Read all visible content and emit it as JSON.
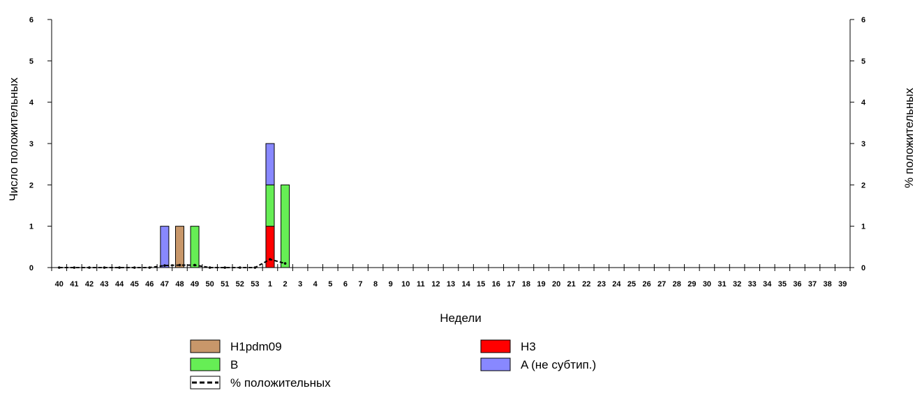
{
  "chart_data": {
    "type": "bar",
    "stacked": true,
    "xlabel": "Недели",
    "ylabel_left": "Число положительных",
    "ylabel_right": "% положительных",
    "categories": [
      "40",
      "41",
      "42",
      "43",
      "44",
      "45",
      "46",
      "47",
      "48",
      "49",
      "50",
      "51",
      "52",
      "53",
      "1",
      "2",
      "3",
      "4",
      "5",
      "6",
      "7",
      "8",
      "9",
      "10",
      "11",
      "12",
      "13",
      "14",
      "15",
      "16",
      "17",
      "18",
      "19",
      "20",
      "21",
      "22",
      "23",
      "24",
      "25",
      "26",
      "27",
      "28",
      "29",
      "30",
      "31",
      "32",
      "33",
      "34",
      "35",
      "36",
      "37",
      "38",
      "39"
    ],
    "ylim_left": [
      0,
      6
    ],
    "ylim_right": [
      0,
      6
    ],
    "yticks_left": [
      "0",
      "1",
      "2",
      "3",
      "4",
      "5",
      "6"
    ],
    "yticks_right": [
      "0",
      "1",
      "2",
      "3",
      "4",
      "5",
      "6"
    ],
    "grid": false,
    "legend_position": "bottom",
    "series": [
      {
        "name": "H1pdm09",
        "color": "#c8976a",
        "values": [
          0,
          0,
          0,
          0,
          0,
          0,
          0,
          0,
          1,
          0,
          0,
          0,
          0,
          0,
          0,
          0,
          0,
          0,
          0,
          0,
          0,
          0,
          0,
          0,
          0,
          0,
          0,
          0,
          0,
          0,
          0,
          0,
          0,
          0,
          0,
          0,
          0,
          0,
          0,
          0,
          0,
          0,
          0,
          0,
          0,
          0,
          0,
          0,
          0,
          0,
          0,
          0,
          0
        ]
      },
      {
        "name": "H3",
        "color": "#ff0000",
        "values": [
          0,
          0,
          0,
          0,
          0,
          0,
          0,
          0,
          0,
          0,
          0,
          0,
          0,
          0,
          1,
          0,
          0,
          0,
          0,
          0,
          0,
          0,
          0,
          0,
          0,
          0,
          0,
          0,
          0,
          0,
          0,
          0,
          0,
          0,
          0,
          0,
          0,
          0,
          0,
          0,
          0,
          0,
          0,
          0,
          0,
          0,
          0,
          0,
          0,
          0,
          0,
          0,
          0
        ]
      },
      {
        "name": "B",
        "color": "#66ee55",
        "values": [
          0,
          0,
          0,
          0,
          0,
          0,
          0,
          0,
          0,
          1,
          0,
          0,
          0,
          0,
          1,
          2,
          0,
          0,
          0,
          0,
          0,
          0,
          0,
          0,
          0,
          0,
          0,
          0,
          0,
          0,
          0,
          0,
          0,
          0,
          0,
          0,
          0,
          0,
          0,
          0,
          0,
          0,
          0,
          0,
          0,
          0,
          0,
          0,
          0,
          0,
          0,
          0,
          0
        ]
      },
      {
        "name": "A (не субтип.)",
        "color": "#8888ff",
        "values": [
          0,
          0,
          0,
          0,
          0,
          0,
          0,
          1,
          0,
          0,
          0,
          0,
          0,
          0,
          1,
          0,
          0,
          0,
          0,
          0,
          0,
          0,
          0,
          0,
          0,
          0,
          0,
          0,
          0,
          0,
          0,
          0,
          0,
          0,
          0,
          0,
          0,
          0,
          0,
          0,
          0,
          0,
          0,
          0,
          0,
          0,
          0,
          0,
          0,
          0,
          0,
          0,
          0
        ]
      }
    ],
    "line_series": {
      "name": "% положительных",
      "axis": "right",
      "style": "dashed",
      "color": "#000000",
      "values": [
        0,
        0,
        0,
        0,
        0,
        0,
        0,
        0.05,
        0.06,
        0.06,
        0,
        0,
        0,
        0,
        0.2,
        0.1
      ]
    },
    "legend": [
      {
        "name": "H1pdm09",
        "kind": "box",
        "color": "#c8976a"
      },
      {
        "name": "H3",
        "kind": "box",
        "color": "#ff0000"
      },
      {
        "name": "B",
        "kind": "box",
        "color": "#66ee55"
      },
      {
        "name": "A (не субтип.)",
        "kind": "box",
        "color": "#8888ff"
      },
      {
        "name": "% положительных",
        "kind": "dashed-line",
        "color": "#000000"
      }
    ]
  }
}
